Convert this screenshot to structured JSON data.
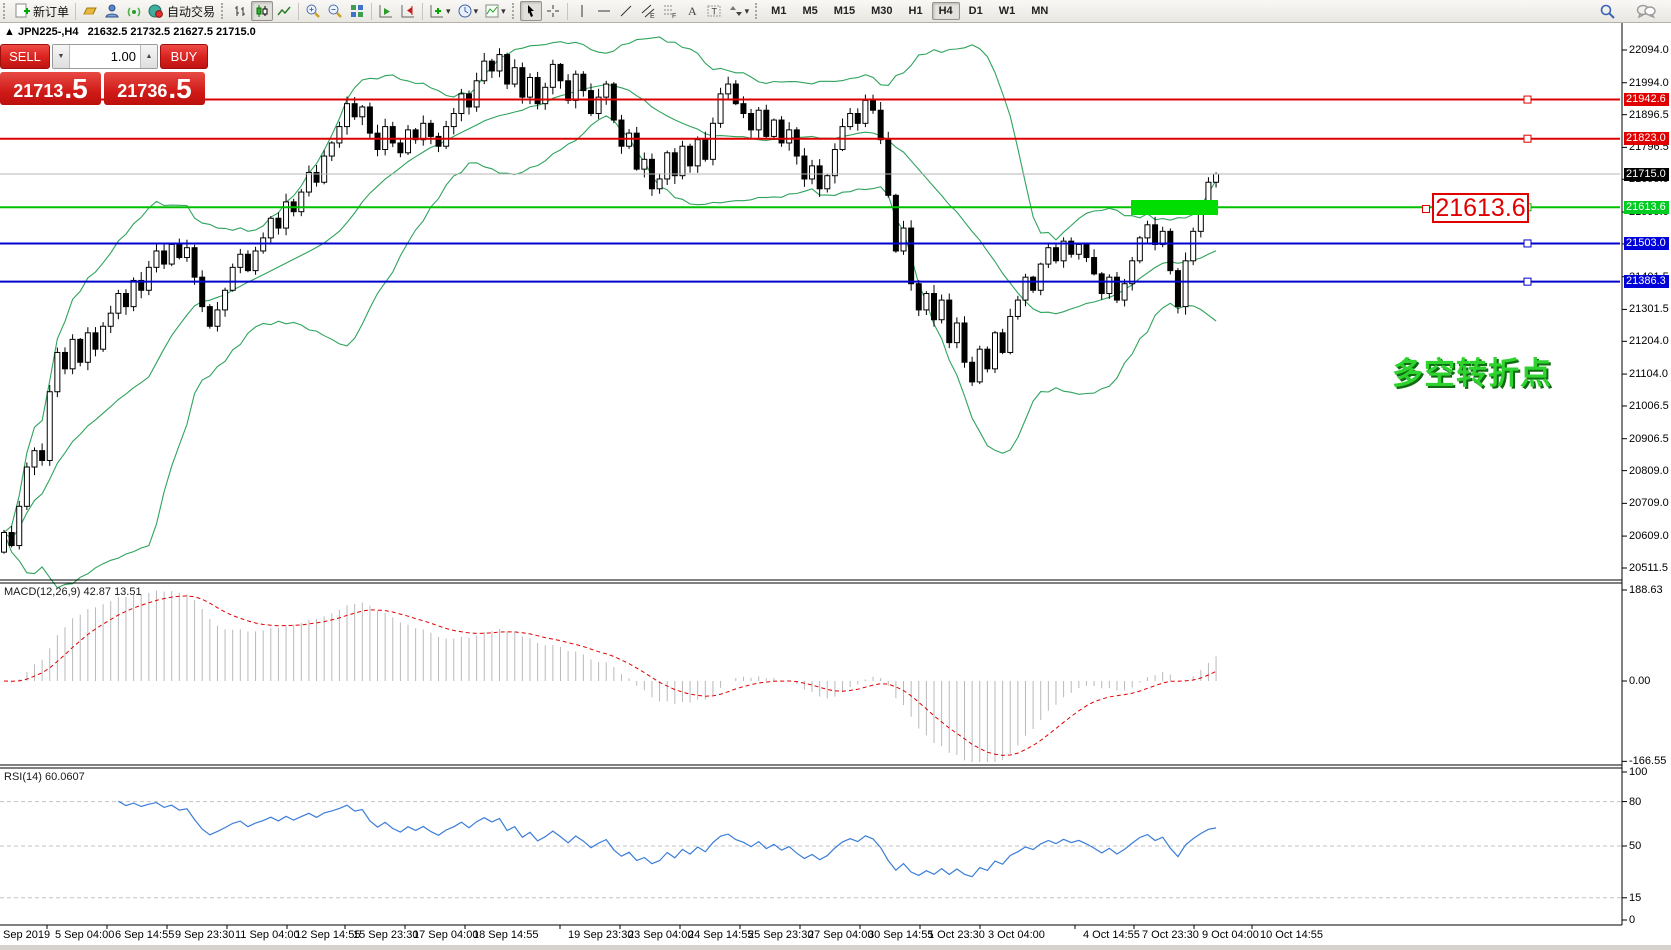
{
  "toolbar": {
    "new_order_label": "新订单",
    "autotrading_label": "自动交易",
    "timeframes": [
      "M1",
      "M5",
      "M15",
      "M30",
      "H1",
      "H4",
      "D1",
      "W1",
      "MN"
    ],
    "active_timeframe": "H4",
    "icons": [
      "new-order-icon",
      "charts-profile-icon",
      "terminal-icon",
      "signals-icon",
      "autotrading-icon",
      "bar-chart-icon",
      "candlestick-icon",
      "line-chart-icon",
      "zoom-in-icon",
      "zoom-out-icon",
      "tile-windows-icon",
      "auto-scroll-icon",
      "chart-shift-icon",
      "indicators-icon",
      "periods-icon",
      "templates-icon",
      "cursor-icon",
      "crosshair-icon",
      "vertical-line-icon",
      "horizontal-line-icon",
      "trendline-icon",
      "channel-icon",
      "fibonacci-icon",
      "text-icon",
      "text-label-icon",
      "arrows-icon",
      "search-icon",
      "chat-icon"
    ]
  },
  "symbol_bar": {
    "marker": "▲",
    "symbol": "JPN225-,H4",
    "ohlc": "21632.5 21732.5 21627.5 21715.0"
  },
  "trade_panel": {
    "sell_label": "SELL",
    "buy_label": "BUY",
    "volume": "1.00",
    "sell_price": {
      "main": "21713",
      "frac": ".5"
    },
    "buy_price": {
      "main": "21736",
      "frac": ".5"
    }
  },
  "price_axis": {
    "ticks": [
      "22094.0",
      "21994.0",
      "21896.5",
      "21796.5",
      "21699.0",
      "21599.0",
      "21501.5",
      "21401.5",
      "21301.5",
      "21204.0",
      "21104.0",
      "21006.5",
      "20906.5",
      "20809.0",
      "20709.0",
      "20609.0",
      "20511.5"
    ]
  },
  "hlines": [
    {
      "label": "21942.6",
      "line": "#dd0000",
      "badge": "#e10000"
    },
    {
      "label": "21823.0",
      "line": "#dd0000",
      "badge": "#e10000"
    },
    {
      "label": "21613.6",
      "line": "#00c000",
      "badge": "#00cc22"
    },
    {
      "label": "21503.0",
      "line": "#0000cc",
      "badge": "#0000d8"
    },
    {
      "label": "21386.3",
      "line": "#0000cc",
      "badge": "#0000d8"
    }
  ],
  "current_price": {
    "label": "21715.0",
    "badge": "#000000",
    "line": "#b4b4b4"
  },
  "annotations": {
    "price_callout": "21613.6",
    "note_text": "多空转折点",
    "highlight_color": "#00dd00"
  },
  "macd": {
    "title": "MACD(12,26,9)",
    "values": "42.87 13.51",
    "axis": [
      "188.63",
      "0.00",
      "-166.55"
    ]
  },
  "rsi": {
    "title": "RSI(14)",
    "value": "60.0607",
    "axis": [
      "100",
      "80",
      "50",
      "15",
      "0"
    ],
    "dashed_levels": [
      80,
      50,
      15
    ]
  },
  "time_axis": {
    "labels": [
      "Sep 2019",
      "5 Sep 04:00",
      "6 Sep 14:55",
      "9 Sep 23:30",
      "11 Sep 04:00",
      "12 Sep 14:55",
      "15 Sep 23:30",
      "17 Sep 04:00",
      "18 Sep 14:55",
      "19 Sep 23:30",
      "23 Sep 04:00",
      "24 Sep 14:55",
      "25 Sep 23:30",
      "27 Sep 04:00",
      "30 Sep 14:55",
      "1 Oct 23:30",
      "3 Oct 04:00",
      "4 Oct 14:55",
      "7 Oct 23:30",
      "9 Oct 04:00",
      "10 Oct 14:55"
    ]
  },
  "chart_data": {
    "type": "candlestick",
    "symbol": "JPN225-",
    "timeframe": "H4",
    "title": "JPN225-,H4 with Bollinger Bands, MACD(12,26,9), RSI(14)",
    "price_range": [
      20511.5,
      22094.0
    ],
    "ohlc_display": {
      "open": 21632.5,
      "high": 21732.5,
      "low": 21627.5,
      "close": 21715.0
    },
    "first_open": 20560,
    "closes": [
      20620,
      20580,
      20700,
      20820,
      20870,
      20840,
      21050,
      21170,
      21120,
      21210,
      21140,
      21230,
      21180,
      21250,
      21290,
      21350,
      21310,
      21390,
      21360,
      21430,
      21480,
      21440,
      21500,
      21460,
      21490,
      21400,
      21310,
      21250,
      21300,
      21360,
      21430,
      21470,
      21420,
      21480,
      21520,
      21580,
      21550,
      21630,
      21600,
      21660,
      21720,
      21690,
      21770,
      21810,
      21860,
      21930,
      21890,
      21920,
      21840,
      21790,
      21860,
      21810,
      21780,
      21850,
      21820,
      21870,
      21830,
      21800,
      21860,
      21900,
      21960,
      21920,
      22000,
      22060,
      22030,
      22080,
      21990,
      22040,
      21950,
      22010,
      21930,
      21980,
      22050,
      22000,
      21940,
      22020,
      21970,
      21900,
      21950,
      21990,
      21880,
      21800,
      21840,
      21730,
      21760,
      21670,
      21700,
      21780,
      21710,
      21800,
      21740,
      21820,
      21760,
      21870,
      21960,
      21990,
      21930,
      21900,
      21850,
      21910,
      21830,
      21880,
      21810,
      21850,
      21770,
      21700,
      21740,
      21670,
      21710,
      21790,
      21860,
      21900,
      21870,
      21940,
      21910,
      21820,
      21650,
      21480,
      21550,
      21380,
      21300,
      21350,
      21270,
      21330,
      21200,
      21260,
      21140,
      21080,
      21180,
      21120,
      21230,
      21170,
      21280,
      21330,
      21400,
      21360,
      21440,
      21490,
      21450,
      21510,
      21470,
      21500,
      21460,
      21410,
      21350,
      21400,
      21330,
      21380,
      21450,
      21520,
      21560,
      21500,
      21540,
      21420,
      21310,
      21450,
      21540,
      21620,
      21690,
      21715
    ],
    "overlays": [
      "Bollinger Bands (green)"
    ],
    "sub_indicators": [
      "MACD(12,26,9)",
      "RSI(14)"
    ]
  }
}
